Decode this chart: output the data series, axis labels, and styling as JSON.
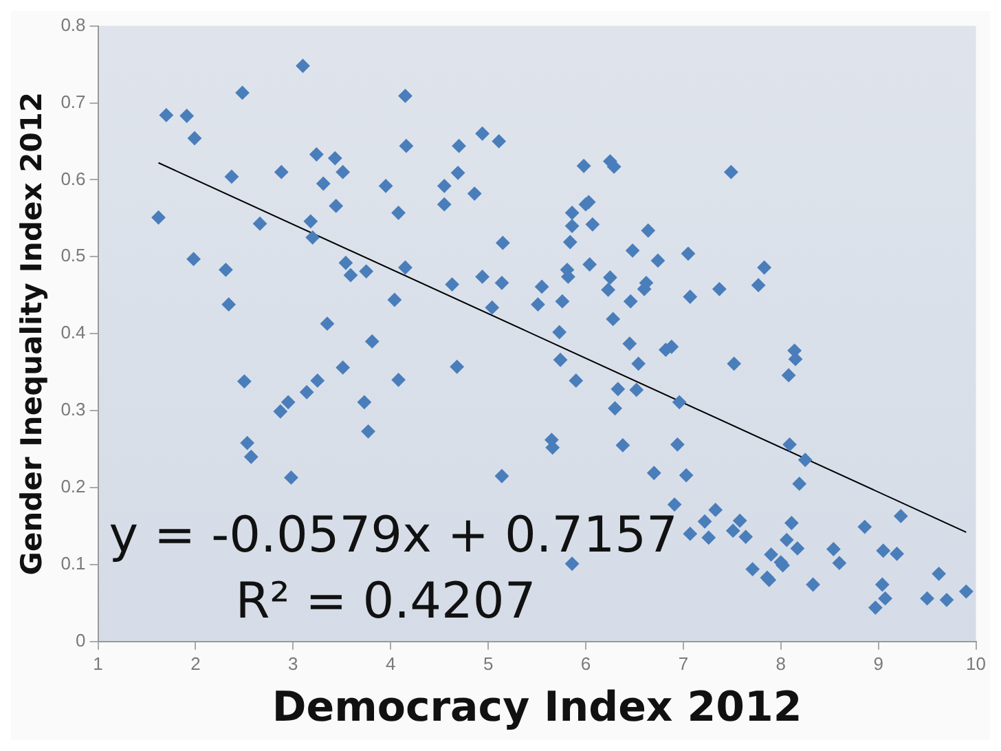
{
  "chart_data": {
    "type": "scatter",
    "xlabel": "Democracy Index 2012",
    "ylabel": "Gender Inequality Index 2012",
    "annotations": [
      "y = -0.0579x + 0.7157",
      "R² = 0.4207"
    ],
    "xlim": [
      1,
      10
    ],
    "xticks": [
      1,
      2,
      3,
      4,
      5,
      6,
      7,
      8,
      9,
      10
    ],
    "ylim": [
      0,
      0.8
    ],
    "yticks": [
      0,
      0.1,
      0.2,
      0.3,
      0.4,
      0.5,
      0.6,
      0.7,
      0.8
    ],
    "marker": "diamond",
    "legend": false,
    "series": [
      {
        "type": "scatter",
        "color": "#4a7ebb",
        "x": [
          1.7,
          1.91,
          1.99,
          1.62,
          1.98,
          2.31,
          2.34,
          2.37,
          2.48,
          2.5,
          2.53,
          2.57,
          2.66,
          2.88,
          2.87,
          2.95,
          2.98,
          3.1,
          3.18,
          3.2,
          3.14,
          3.25,
          3.24,
          3.31,
          3.43,
          3.51,
          3.44,
          3.35,
          3.51,
          3.54,
          3.59,
          3.75,
          3.81,
          3.73,
          3.77,
          3.95,
          4.04,
          4.08,
          4.08,
          4.15,
          4.16,
          4.15,
          4.7,
          4.55,
          4.55,
          4.69,
          4.86,
          4.94,
          5.11,
          5.15,
          4.63,
          4.94,
          5.14,
          5.04,
          4.68,
          5.14,
          5.55,
          5.51,
          5.76,
          5.73,
          5.74,
          5.9,
          5.65,
          5.66,
          5.86,
          5.81,
          5.82,
          5.84,
          5.86,
          5.86,
          5.98,
          6.0,
          6.03,
          6.07,
          6.04,
          6.25,
          6.29,
          6.25,
          6.23,
          6.28,
          6.48,
          6.46,
          6.64,
          6.74,
          6.62,
          6.6,
          6.45,
          6.54,
          6.33,
          6.52,
          6.3,
          6.38,
          6.82,
          6.88,
          6.96,
          6.94,
          6.7,
          7.03,
          6.91,
          7.07,
          7.05,
          7.07,
          7.49,
          7.37,
          7.77,
          7.83,
          7.52,
          8.14,
          8.15,
          8.08,
          7.22,
          7.26,
          7.33,
          7.51,
          7.58,
          7.64,
          7.71,
          7.86,
          7.88,
          7.9,
          8.0,
          8.02,
          8.09,
          8.25,
          8.19,
          8.11,
          8.06,
          8.17,
          8.33,
          8.54,
          8.6,
          8.86,
          9.23,
          9.05,
          9.19,
          9.04,
          9.07,
          8.97,
          9.62,
          9.5,
          9.7,
          9.9
        ],
        "values": [
          0.684,
          0.683,
          0.654,
          0.551,
          0.497,
          0.483,
          0.438,
          0.604,
          0.713,
          0.338,
          0.258,
          0.24,
          0.543,
          0.61,
          0.299,
          0.311,
          0.213,
          0.748,
          0.546,
          0.525,
          0.324,
          0.339,
          0.633,
          0.595,
          0.628,
          0.61,
          0.566,
          0.413,
          0.356,
          0.492,
          0.476,
          0.481,
          0.39,
          0.311,
          0.273,
          0.592,
          0.444,
          0.34,
          0.557,
          0.709,
          0.644,
          0.486,
          0.644,
          0.592,
          0.568,
          0.609,
          0.582,
          0.66,
          0.65,
          0.518,
          0.464,
          0.474,
          0.466,
          0.434,
          0.357,
          0.215,
          0.461,
          0.438,
          0.442,
          0.402,
          0.366,
          0.339,
          0.262,
          0.252,
          0.101,
          0.483,
          0.474,
          0.519,
          0.54,
          0.557,
          0.618,
          0.568,
          0.571,
          0.542,
          0.49,
          0.624,
          0.617,
          0.473,
          0.457,
          0.419,
          0.508,
          0.442,
          0.534,
          0.495,
          0.466,
          0.458,
          0.387,
          0.361,
          0.328,
          0.327,
          0.303,
          0.255,
          0.379,
          0.383,
          0.311,
          0.256,
          0.219,
          0.216,
          0.178,
          0.14,
          0.504,
          0.448,
          0.61,
          0.458,
          0.463,
          0.486,
          0.361,
          0.378,
          0.367,
          0.346,
          0.156,
          0.135,
          0.171,
          0.144,
          0.157,
          0.136,
          0.094,
          0.083,
          0.08,
          0.113,
          0.103,
          0.099,
          0.256,
          0.236,
          0.205,
          0.154,
          0.132,
          0.121,
          0.074,
          0.12,
          0.102,
          0.149,
          0.163,
          0.118,
          0.114,
          0.074,
          0.056,
          0.044,
          0.088,
          0.056,
          0.054,
          0.065
        ]
      },
      {
        "type": "line",
        "color": "#000000",
        "marker": "none",
        "x": [
          1.62,
          9.9
        ],
        "values": [
          0.622,
          0.142
        ]
      }
    ]
  }
}
